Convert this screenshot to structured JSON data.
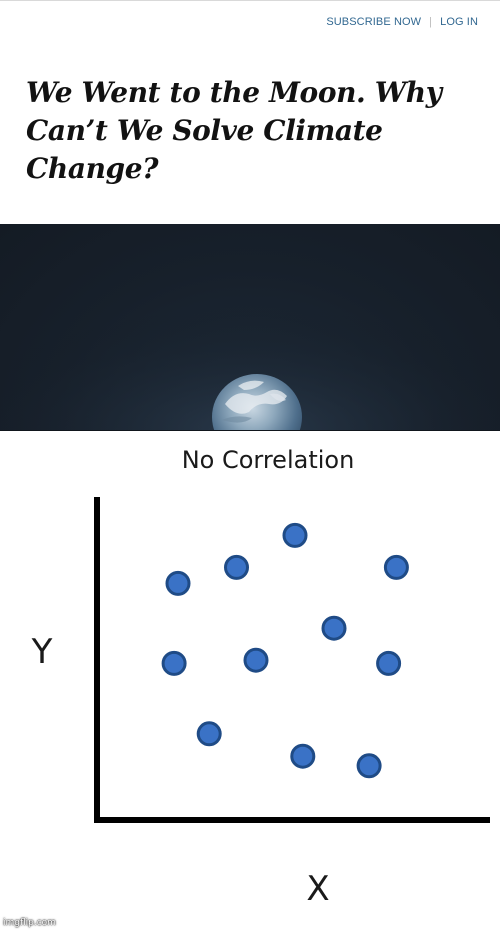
{
  "header": {
    "subscribe_label": "SUBSCRIBE NOW",
    "separator": "|",
    "login_label": "LOG IN"
  },
  "article": {
    "headline_line1": "We Went to the Moon. Why",
    "headline_line2": "Can’t We Solve Climate",
    "headline_line3": "Change?"
  },
  "photo": {
    "subject": "earthrise-photo"
  },
  "colors": {
    "link": "#326891",
    "point_fill": "#3a72c6",
    "point_stroke": "#1f4b86",
    "axis": "#000000"
  },
  "chart_data": {
    "type": "scatter",
    "title": "No Correlation",
    "xlabel": "X",
    "ylabel": "Y",
    "xlim": [
      0,
      10
    ],
    "ylim": [
      0,
      10
    ],
    "grid": false,
    "points": [
      {
        "x": 2.0,
        "y": 7.3
      },
      {
        "x": 3.5,
        "y": 7.8
      },
      {
        "x": 5.0,
        "y": 8.8
      },
      {
        "x": 7.6,
        "y": 7.8
      },
      {
        "x": 6.0,
        "y": 5.9
      },
      {
        "x": 1.9,
        "y": 4.8
      },
      {
        "x": 4.0,
        "y": 4.9
      },
      {
        "x": 7.4,
        "y": 4.8
      },
      {
        "x": 2.8,
        "y": 2.6
      },
      {
        "x": 5.2,
        "y": 1.9
      },
      {
        "x": 6.9,
        "y": 1.6
      }
    ]
  },
  "footer": {
    "watermark": "imgflip.com"
  }
}
